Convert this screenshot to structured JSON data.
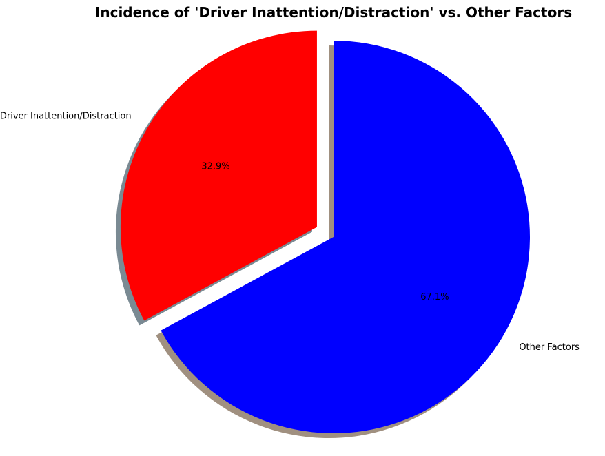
{
  "chart_data": {
    "type": "pie",
    "title": "Incidence of 'Driver Inattention/Distraction' vs. Other Factors",
    "slices": [
      {
        "label": "Driver Inattention/Distraction",
        "value": 32.9,
        "pct_label": "32.9%",
        "color": "#ff0000",
        "shadow_color": "#7a8a93",
        "exploded": true
      },
      {
        "label": "Other Factors",
        "value": 67.1,
        "pct_label": "67.1%",
        "color": "#0000ff",
        "shadow_color": "#a09080",
        "exploded": false
      }
    ],
    "start_angle_deg": 90,
    "direction": "counterclockwise",
    "shadow": true,
    "legend": "none"
  }
}
